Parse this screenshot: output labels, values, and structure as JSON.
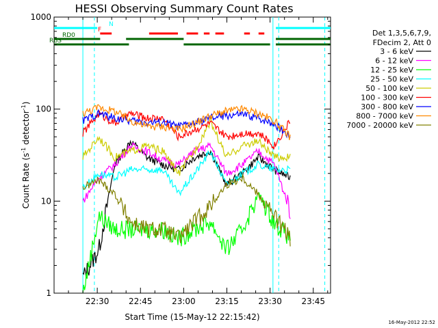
{
  "chart_data": {
    "type": "line",
    "title": "HESSI Observing Summary Count Rates",
    "xlabel": "Start Time (15-May-12 22:15:42)",
    "ylabel_prefix": "Count Rate (s",
    "ylabel_sup1": "-1",
    "ylabel_mid": " detector",
    "ylabel_sup2": "-1",
    "ylabel_suffix": ")",
    "yscale": "log",
    "ylim": [
      1,
      1000
    ],
    "xlim_minutes": [
      0,
      96
    ],
    "x_ticks": [
      {
        "m": 15,
        "label": "22:30"
      },
      {
        "m": 30,
        "label": "22:45"
      },
      {
        "m": 45,
        "label": "23:00"
      },
      {
        "m": 60,
        "label": "23:15"
      },
      {
        "m": 75,
        "label": "23:30"
      },
      {
        "m": 90,
        "label": "23:45"
      }
    ],
    "y_ticks": [
      {
        "v": 1,
        "label": "1"
      },
      {
        "v": 10,
        "label": "10"
      },
      {
        "v": 100,
        "label": "100"
      },
      {
        "v": 1000,
        "label": "1000"
      }
    ],
    "legend": {
      "header": [
        "Det 1,3,5,6,7,9,",
        "FDecim 2, Att 0"
      ],
      "position": "right-outside"
    },
    "series": [
      {
        "name": "3 - 6 keV",
        "color": "#000000",
        "level": [
          1.5,
          3,
          25,
          45,
          30,
          25,
          22,
          30,
          35,
          15,
          20,
          30,
          22,
          18
        ]
      },
      {
        "name": "6 - 12 keV",
        "color": "#ff00ff",
        "level": [
          10,
          18,
          25,
          40,
          35,
          28,
          25,
          35,
          40,
          20,
          25,
          35,
          25,
          8
        ]
      },
      {
        "name": "12 - 25 keV",
        "color": "#00ff00",
        "level": [
          1.0,
          7,
          5,
          5,
          5,
          5,
          4,
          5,
          6,
          3,
          5,
          12,
          6,
          4
        ]
      },
      {
        "name": "25 - 50 keV",
        "color": "#00ffff",
        "level": [
          14,
          20,
          18,
          22,
          22,
          22,
          12,
          20,
          35,
          15,
          20,
          25,
          22,
          22
        ]
      },
      {
        "name": "50 - 100 keV",
        "color": "#cccc00",
        "level": [
          30,
          50,
          30,
          35,
          40,
          35,
          20,
          35,
          75,
          30,
          40,
          45,
          30,
          30
        ]
      },
      {
        "name": "100 - 300 keV",
        "color": "#ff0000",
        "level": [
          55,
          90,
          70,
          90,
          80,
          80,
          50,
          60,
          70,
          50,
          55,
          55,
          40,
          75
        ]
      },
      {
        "name": "300 - 800 keV",
        "color": "#0000ff",
        "level": [
          75,
          90,
          80,
          75,
          72,
          72,
          65,
          70,
          80,
          85,
          88,
          80,
          70,
          50
        ]
      },
      {
        "name": "800 - 7000 keV",
        "color": "#ff8800",
        "level": [
          90,
          105,
          95,
          75,
          65,
          65,
          60,
          70,
          85,
          95,
          100,
          90,
          75,
          50
        ]
      },
      {
        "name": "7000 - 20000 keV",
        "color": "#808000",
        "level": [
          14,
          17,
          12,
          6,
          5,
          5,
          4,
          6,
          9,
          15,
          18,
          12,
          7,
          4
        ]
      }
    ],
    "flags": [
      {
        "label": "N",
        "color": "#00ffff",
        "level": 3,
        "segments": [
          [
            -2,
            15
          ],
          [
            77,
            96
          ]
        ]
      },
      {
        "label": "F",
        "color": "#ff0000",
        "level": 2,
        "segments": [
          [
            16,
            20
          ],
          [
            33,
            43
          ],
          [
            46,
            50
          ],
          [
            52,
            54
          ],
          [
            56,
            59
          ],
          [
            66,
            68
          ],
          [
            71,
            73
          ]
        ]
      },
      {
        "label": "RD0",
        "color": "#006400",
        "level": 1,
        "segments": [
          [
            -2,
            16
          ],
          [
            25,
            45
          ],
          [
            77,
            96
          ]
        ]
      },
      {
        "label": "RBS",
        "color": "#006400",
        "level": 0,
        "segments": [
          [
            -2,
            26
          ],
          [
            45,
            75
          ],
          [
            77,
            96
          ]
        ]
      }
    ],
    "vlines_solid": [
      10,
      76
    ],
    "vlines_dashed": [
      14,
      78,
      94
    ],
    "timestamp": "16-May-2012 22:52"
  }
}
